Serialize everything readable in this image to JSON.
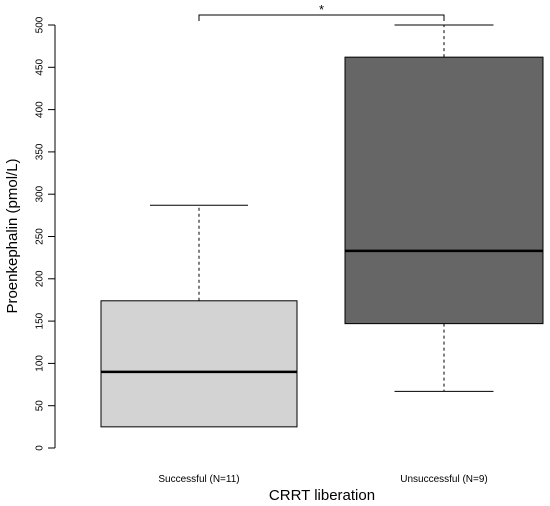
{
  "chart_data": {
    "type": "box",
    "xlabel": "CRRT liberation",
    "ylabel": "Proenkephalin (pmol/L)",
    "ylim": [
      0,
      500
    ],
    "yticks": [
      0,
      50,
      100,
      150,
      200,
      250,
      300,
      350,
      400,
      450,
      500
    ],
    "ytick_labels": [
      "0",
      "50",
      "100",
      "150",
      "200",
      "250",
      "300",
      "350",
      "400",
      "450",
      "500"
    ],
    "grid": false,
    "legend": "none",
    "categories": [
      "Successful (N=11)",
      "Unsuccessful (N=9)"
    ],
    "boxes": [
      {
        "category": "Successful (N=11)",
        "whisker_low": 25,
        "q1": 25,
        "median": 90,
        "q3": 174,
        "whisker_high": 287,
        "fill": "#d3d3d3"
      },
      {
        "category": "Unsuccessful (N=9)",
        "whisker_low": 67,
        "q1": 147,
        "median": 233,
        "q3": 462,
        "whisker_high": 500,
        "fill": "#666666"
      }
    ],
    "significance": {
      "label": "*",
      "from": 0,
      "to": 1
    }
  }
}
